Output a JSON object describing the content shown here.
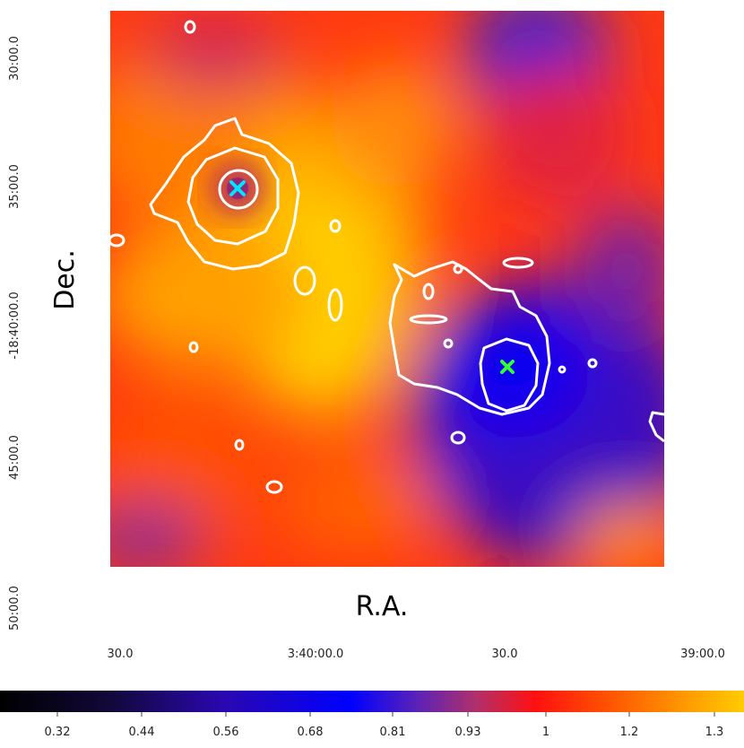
{
  "chart_data": {
    "type": "heatmap",
    "xlabel": "R.A.",
    "ylabel": "Dec.",
    "x_ticks": [
      "30.0",
      "3:40:00.0",
      "30.0",
      "39:00.0"
    ],
    "y_ticks": [
      "30:00.0",
      "35:00.0",
      "-18:40:00.0",
      "45:00.0",
      "50:00.0"
    ],
    "colorbar": {
      "ticks": [
        "0.32",
        "0.44",
        "0.56",
        "0.68",
        "0.81",
        "0.93",
        "1",
        "1.2",
        "1.3"
      ],
      "colormap": [
        "#000000",
        "#1a0a5e",
        "#2d00d8",
        "#0000ff",
        "#6a1fb0",
        "#b8305e",
        "#ff1010",
        "#ff5a00",
        "#ff9a00",
        "#ffcc00"
      ]
    },
    "markers": [
      {
        "name": "cyan-cross",
        "color": "#00e5ff",
        "symbol": "x"
      },
      {
        "name": "green-cross",
        "color": "#33ff33",
        "symbol": "x"
      }
    ],
    "contour_color": "#ffffff",
    "grid": false
  }
}
